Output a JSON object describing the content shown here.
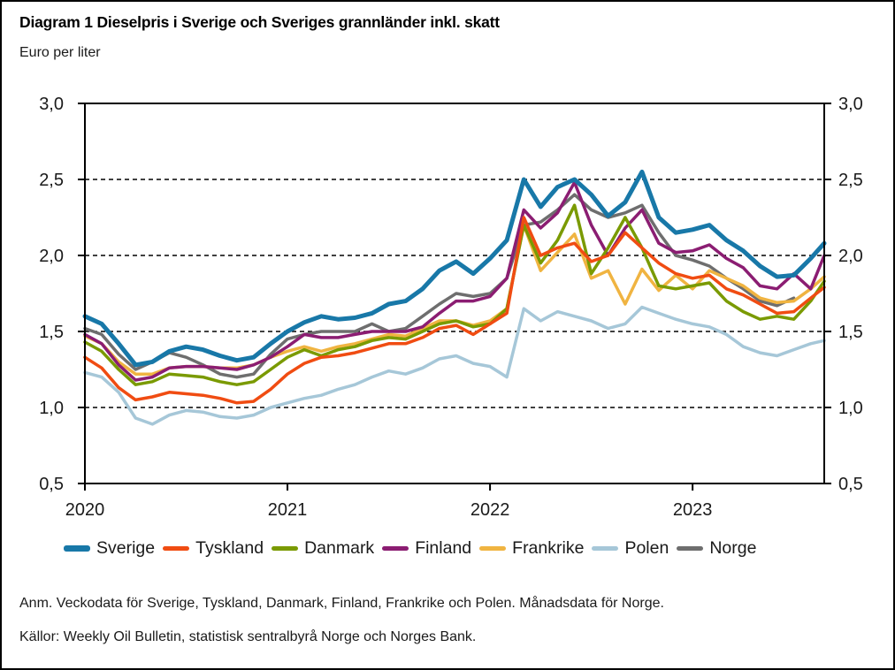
{
  "page": {
    "title": "Diagram 1 Dieselpris i Sverige och Sveriges grannländer inkl. skatt",
    "subtitle": "Euro per liter"
  },
  "footnotes": {
    "anm": "Anm. Veckodata för Sverige, Tyskland, Danmark, Finland, Frankrike och Polen. Månadsdata för Norge.",
    "kallor": "Källor: Weekly Oil Bulletin, statistisk sentralbyrå Norge och Norges Bank."
  },
  "chart_data": {
    "type": "line",
    "title": "Diagram 1 Dieselpris i Sverige och Sveriges grannländer inkl. skatt",
    "ylabel": "Euro per liter",
    "xlabel": "",
    "grid": "horizontal-dashed",
    "legend_position": "bottom",
    "xlim": [
      2020,
      2023.65
    ],
    "ylim": [
      0.5,
      3.0
    ],
    "xticks": {
      "values": [
        2020,
        2021,
        2022,
        2023
      ],
      "labels": [
        "2020",
        "2021",
        "2022",
        "2023"
      ]
    },
    "yticks": {
      "values": [
        0.5,
        1.0,
        1.5,
        2.0,
        2.5,
        3.0
      ],
      "labels": [
        "0,5",
        "1,0",
        "1,5",
        "2,0",
        "2,5",
        "3,0"
      ]
    },
    "x": [
      2020.0,
      2020.083,
      2020.167,
      2020.25,
      2020.333,
      2020.417,
      2020.5,
      2020.583,
      2020.667,
      2020.75,
      2020.833,
      2020.917,
      2021.0,
      2021.083,
      2021.167,
      2021.25,
      2021.333,
      2021.417,
      2021.5,
      2021.583,
      2021.667,
      2021.75,
      2021.833,
      2021.917,
      2022.0,
      2022.083,
      2022.167,
      2022.25,
      2022.333,
      2022.417,
      2022.5,
      2022.583,
      2022.667,
      2022.75,
      2022.833,
      2022.917,
      2023.0,
      2023.083,
      2023.167,
      2023.25,
      2023.333,
      2023.417,
      2023.5,
      2023.583,
      2023.65
    ],
    "series": [
      {
        "name": "Sverige",
        "color": "#1878a8",
        "stroke_width": 5,
        "values": [
          1.6,
          1.55,
          1.42,
          1.28,
          1.3,
          1.37,
          1.4,
          1.38,
          1.34,
          1.31,
          1.33,
          1.42,
          1.5,
          1.56,
          1.6,
          1.58,
          1.59,
          1.62,
          1.68,
          1.7,
          1.78,
          1.9,
          1.96,
          1.88,
          1.98,
          2.1,
          2.5,
          2.32,
          2.45,
          2.5,
          2.4,
          2.26,
          2.35,
          2.55,
          2.25,
          2.15,
          2.17,
          2.2,
          2.1,
          2.03,
          1.93,
          1.86,
          1.87,
          1.98,
          2.08
        ]
      },
      {
        "name": "Tyskland",
        "color": "#f04c12",
        "stroke_width": 3.5,
        "values": [
          1.33,
          1.26,
          1.13,
          1.05,
          1.07,
          1.1,
          1.09,
          1.08,
          1.06,
          1.03,
          1.04,
          1.12,
          1.22,
          1.29,
          1.33,
          1.34,
          1.36,
          1.39,
          1.42,
          1.42,
          1.46,
          1.52,
          1.54,
          1.48,
          1.55,
          1.62,
          2.25,
          2.0,
          2.05,
          2.08,
          1.96,
          2.0,
          2.15,
          2.05,
          1.95,
          1.88,
          1.85,
          1.87,
          1.78,
          1.74,
          1.68,
          1.62,
          1.63,
          1.72,
          1.79
        ]
      },
      {
        "name": "Danmark",
        "color": "#7a9a01",
        "stroke_width": 3.5,
        "values": [
          1.43,
          1.37,
          1.25,
          1.15,
          1.17,
          1.22,
          1.21,
          1.2,
          1.17,
          1.15,
          1.17,
          1.25,
          1.33,
          1.38,
          1.34,
          1.38,
          1.4,
          1.44,
          1.46,
          1.45,
          1.5,
          1.55,
          1.57,
          1.53,
          1.55,
          1.65,
          2.2,
          1.95,
          2.1,
          2.33,
          1.88,
          2.05,
          2.25,
          2.05,
          1.8,
          1.78,
          1.8,
          1.82,
          1.7,
          1.63,
          1.58,
          1.6,
          1.58,
          1.7,
          1.83
        ]
      },
      {
        "name": "Finland",
        "color": "#8b1d72",
        "stroke_width": 3.5,
        "values": [
          1.48,
          1.42,
          1.28,
          1.18,
          1.2,
          1.26,
          1.27,
          1.27,
          1.26,
          1.25,
          1.28,
          1.33,
          1.4,
          1.48,
          1.46,
          1.46,
          1.48,
          1.5,
          1.5,
          1.5,
          1.53,
          1.62,
          1.7,
          1.7,
          1.73,
          1.85,
          2.3,
          2.18,
          2.28,
          2.48,
          2.2,
          2.0,
          2.18,
          2.3,
          2.08,
          2.02,
          2.03,
          2.07,
          1.98,
          1.92,
          1.8,
          1.78,
          1.88,
          1.78,
          2.0
        ]
      },
      {
        "name": "Frankrike",
        "color": "#f0b441",
        "stroke_width": 3.5,
        "values": [
          1.47,
          1.42,
          1.3,
          1.22,
          1.22,
          1.26,
          1.27,
          1.27,
          1.26,
          1.26,
          1.28,
          1.33,
          1.37,
          1.4,
          1.37,
          1.4,
          1.42,
          1.45,
          1.48,
          1.47,
          1.52,
          1.57,
          1.57,
          1.54,
          1.57,
          1.65,
          2.2,
          1.9,
          2.02,
          2.14,
          1.85,
          1.9,
          1.68,
          1.91,
          1.77,
          1.87,
          1.78,
          1.9,
          1.85,
          1.8,
          1.72,
          1.69,
          1.7,
          1.78,
          1.86
        ]
      },
      {
        "name": "Polen",
        "color": "#a6c7d8",
        "stroke_width": 3.5,
        "values": [
          1.23,
          1.2,
          1.1,
          0.93,
          0.89,
          0.95,
          0.98,
          0.97,
          0.94,
          0.93,
          0.95,
          1.0,
          1.03,
          1.06,
          1.08,
          1.12,
          1.15,
          1.2,
          1.24,
          1.22,
          1.26,
          1.32,
          1.34,
          1.29,
          1.27,
          1.2,
          1.65,
          1.57,
          1.63,
          1.6,
          1.57,
          1.52,
          1.55,
          1.66,
          1.62,
          1.58,
          1.55,
          1.53,
          1.48,
          1.4,
          1.36,
          1.34,
          1.38,
          1.42,
          1.44
        ]
      },
      {
        "name": "Norge",
        "color": "#6e6e6e",
        "stroke_width": 3.5,
        "values": [
          1.52,
          1.48,
          1.35,
          1.25,
          1.3,
          1.36,
          1.33,
          1.28,
          1.22,
          1.2,
          1.22,
          1.35,
          1.45,
          1.48,
          1.5,
          1.5,
          1.5,
          1.55,
          1.5,
          1.52,
          1.6,
          1.68,
          1.75,
          1.73,
          1.75,
          1.85,
          2.2,
          2.22,
          2.3,
          2.4,
          2.3,
          2.25,
          2.28,
          2.33,
          2.15,
          2.0,
          1.97,
          1.93,
          1.85,
          1.78,
          1.7,
          1.67,
          1.72,
          null,
          null
        ]
      }
    ]
  }
}
